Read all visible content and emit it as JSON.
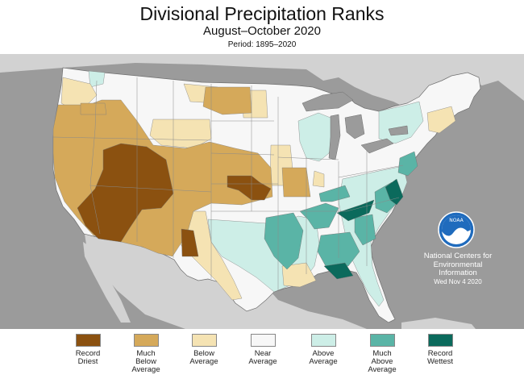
{
  "header": {
    "title": "Divisional Precipitation Ranks",
    "subtitle": "August–October 2020",
    "period": "Period: 1895–2020"
  },
  "credit": {
    "line1": "National Centers for",
    "line2": "Environmental",
    "line3": "Information",
    "date": "Wed Nov  4 2020",
    "logo_text": "NOAA"
  },
  "colors": {
    "record_driest": "#8b5110",
    "much_below": "#d5a95a",
    "below": "#f5e3b3",
    "near": "#f7f7f7",
    "above": "#cdeee7",
    "much_above": "#5ab4a6",
    "record_wettest": "#0b6a5c",
    "land_other": "#d2d2d2",
    "ocean": "#9b9b9b"
  },
  "legend": [
    {
      "key": "record_driest",
      "lines": [
        "Record",
        "Driest"
      ]
    },
    {
      "key": "much_below",
      "lines": [
        "Much",
        "Below",
        "Average"
      ]
    },
    {
      "key": "below",
      "lines": [
        "Below",
        "Average"
      ]
    },
    {
      "key": "near",
      "lines": [
        "Near",
        "Average"
      ]
    },
    {
      "key": "above",
      "lines": [
        "Above",
        "Average"
      ]
    },
    {
      "key": "much_above",
      "lines": [
        "Much",
        "Above",
        "Average"
      ]
    },
    {
      "key": "record_wettest",
      "lines": [
        "Record",
        "Wettest"
      ]
    }
  ]
}
